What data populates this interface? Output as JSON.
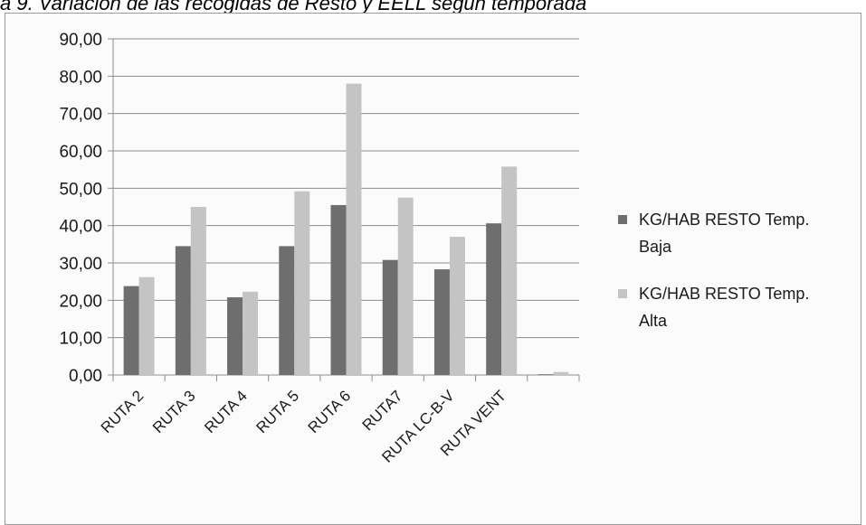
{
  "caption": "a 9.   Variación de las recogidas de Resto y EELL según temporada",
  "chart_data": {
    "type": "bar",
    "title": "",
    "xlabel": "",
    "ylabel": "",
    "ylim": [
      0,
      90
    ],
    "ytick_labels": [
      "0,00",
      "10,00",
      "20,00",
      "30,00",
      "40,00",
      "50,00",
      "60,00",
      "70,00",
      "80,00",
      "90,00"
    ],
    "grid": true,
    "legend_position": "right",
    "categories": [
      "RUTA 2",
      "RUTA 3",
      "RUTA 4",
      "RUTA 5",
      "RUTA 6",
      "RUTA7",
      "RUTA LC-B-V",
      "RUTA VENT",
      ""
    ],
    "series": [
      {
        "name": "KG/HAB RESTO Temp. Baja",
        "legend_lines": [
          "KG/HAB RESTO Temp.",
          "Baja"
        ],
        "color": "#6e6e6e",
        "values": [
          23.8,
          34.5,
          20.8,
          34.5,
          45.5,
          30.8,
          28.3,
          40.6,
          0.2
        ]
      },
      {
        "name": "KG/HAB RESTO Temp. Alta",
        "legend_lines": [
          "KG/HAB RESTO Temp.",
          "Alta"
        ],
        "color": "#c4c4c4",
        "values": [
          26.2,
          45.0,
          22.3,
          49.2,
          78.0,
          47.5,
          37.0,
          55.8,
          0.8
        ]
      }
    ]
  }
}
